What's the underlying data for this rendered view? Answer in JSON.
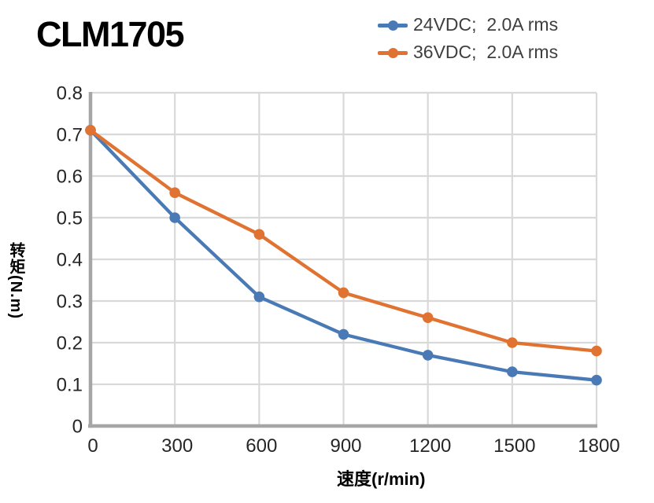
{
  "title": "CLM1705",
  "legend": {
    "items": [
      {
        "label": "24VDC;  2.0A rms",
        "color": "#4a7ab5"
      },
      {
        "label": "36VDC;  2.0A rms",
        "color": "#e07331"
      }
    ]
  },
  "chart_data": {
    "type": "line",
    "title": "CLM1705",
    "xlabel": "速度(r/min)",
    "ylabel": "转矩(N.m)",
    "x": [
      0,
      300,
      600,
      900,
      1200,
      1500,
      1800
    ],
    "series": [
      {
        "name": "24VDC;  2.0A rms",
        "color": "#4a7ab5",
        "values": [
          0.71,
          0.5,
          0.31,
          0.22,
          0.17,
          0.13,
          0.11
        ]
      },
      {
        "name": "36VDC;  2.0A rms",
        "color": "#e07331",
        "values": [
          0.71,
          0.56,
          0.46,
          0.32,
          0.26,
          0.2,
          0.18
        ]
      }
    ],
    "xlim": [
      0,
      1800
    ],
    "ylim": [
      0,
      0.8
    ],
    "xtick_labels": [
      "0",
      "300",
      "600",
      "900",
      "1200",
      "1500",
      "1800"
    ],
    "ytick_labels": [
      "0",
      "0.1",
      "0.2",
      "0.3",
      "0.4",
      "0.5",
      "0.6",
      "0.7",
      "0.8"
    ],
    "grid": true,
    "legend_position": "top-right"
  },
  "colors": {
    "grid": "#d9d9d9",
    "axis": "#a6a6a6",
    "tick_text": "#262626",
    "legend_text": "#3f3f3f",
    "title_text": "#000000",
    "background": "#ffffff"
  }
}
